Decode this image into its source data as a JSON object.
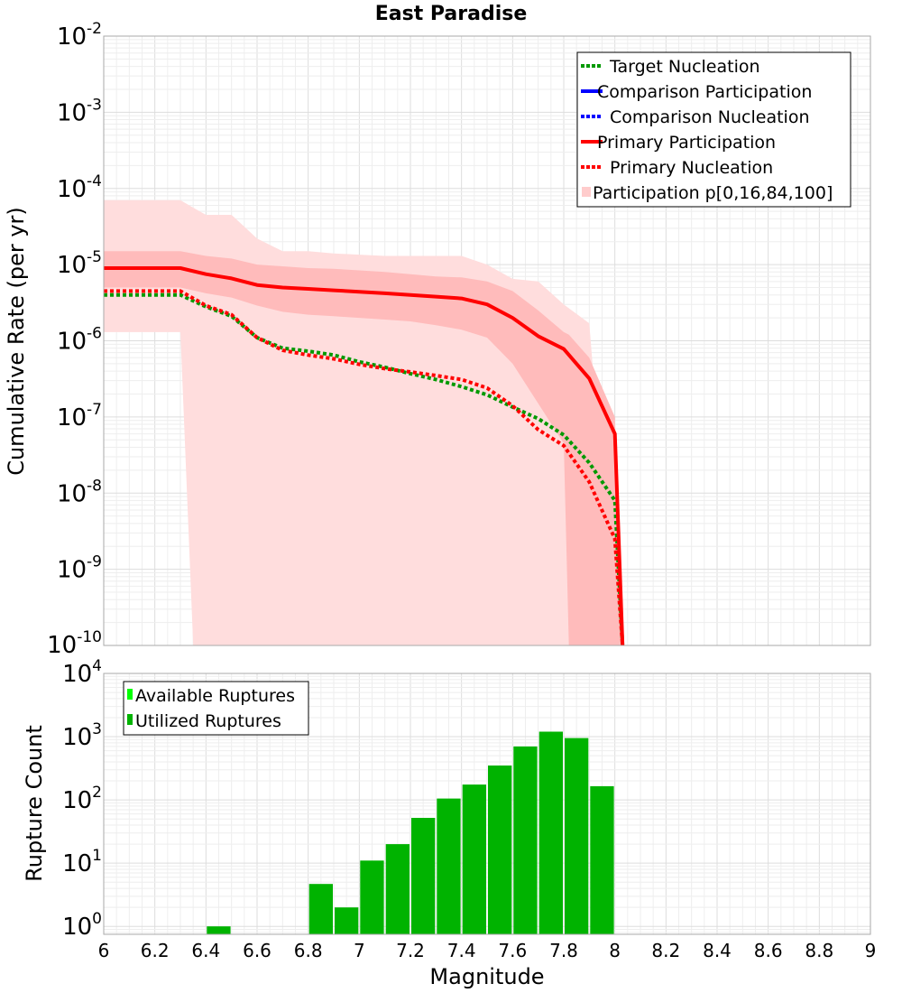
{
  "chart_data": [
    {
      "type": "line",
      "title": "East Paradise",
      "xlabel": "",
      "ylabel": "Cumulative Rate (per yr)",
      "yscale": "log",
      "xlim": [
        6,
        9
      ],
      "ylim": [
        1e-10,
        0.01
      ],
      "ytick_labels": [
        {
          "base": "10",
          "exp": "-2"
        },
        {
          "base": "10",
          "exp": "-3"
        },
        {
          "base": "10",
          "exp": "-4"
        },
        {
          "base": "10",
          "exp": "-5"
        },
        {
          "base": "10",
          "exp": "-6"
        },
        {
          "base": "10",
          "exp": "-7"
        },
        {
          "base": "10",
          "exp": "-8"
        },
        {
          "base": "10",
          "exp": "-9"
        },
        {
          "base": "10",
          "exp": "-10"
        }
      ],
      "legend": {
        "position": "top-right",
        "entries": [
          {
            "label": "Target Nucleation",
            "color": "#009900",
            "style": "dotted"
          },
          {
            "label": "Comparison Participation",
            "color": "#0000ff",
            "style": "solid"
          },
          {
            "label": "Comparison Nucleation",
            "color": "#0000ff",
            "style": "dotted"
          },
          {
            "label": "Primary Participation",
            "color": "#ff0000",
            "style": "solid"
          },
          {
            "label": "Primary Nucleation",
            "color": "#ff0000",
            "style": "dotted"
          },
          {
            "label": "Participation p[0,16,84,100]",
            "color": "#ffcccc",
            "style": "band"
          }
        ]
      },
      "series": [
        {
          "name": "Primary Participation",
          "color": "#ff0000",
          "style": "solid",
          "x": [
            6.0,
            6.3,
            6.4,
            6.5,
            6.6,
            6.7,
            6.8,
            6.9,
            7.0,
            7.1,
            7.2,
            7.3,
            7.4,
            7.5,
            7.6,
            7.7,
            7.8,
            7.9,
            8.0,
            8.03
          ],
          "y": [
            9e-06,
            9e-06,
            7.5e-06,
            6.6e-06,
            5.4e-06,
            5e-06,
            4.8e-06,
            4.6e-06,
            4.4e-06,
            4.2e-06,
            4e-06,
            3.8e-06,
            3.6e-06,
            3e-06,
            2e-06,
            1.15e-06,
            7.8e-07,
            3.2e-07,
            6e-08,
            1e-10
          ]
        },
        {
          "name": "Primary Nucleation",
          "color": "#ff0000",
          "style": "dotted",
          "x": [
            6.0,
            6.3,
            6.4,
            6.5,
            6.6,
            6.7,
            6.8,
            6.9,
            7.0,
            7.1,
            7.2,
            7.3,
            7.4,
            7.5,
            7.6,
            7.7,
            7.8,
            7.9,
            8.0,
            8.03
          ],
          "y": [
            4.5e-06,
            4.5e-06,
            2.9e-06,
            2.2e-06,
            1.1e-06,
            7.5e-07,
            6.5e-07,
            5.8e-07,
            4.9e-07,
            4.3e-07,
            3.9e-07,
            3.5e-07,
            3.1e-07,
            2.4e-07,
            1.4e-07,
            6.8e-08,
            4.2e-08,
            1.4e-08,
            2.5e-09,
            1e-10
          ]
        },
        {
          "name": "Target Nucleation",
          "color": "#009900",
          "style": "dotted",
          "x": [
            6.0,
            6.3,
            6.4,
            6.5,
            6.6,
            6.7,
            6.8,
            6.9,
            7.0,
            7.1,
            7.2,
            7.3,
            7.4,
            7.5,
            7.6,
            7.7,
            7.8,
            7.9,
            8.0,
            8.03
          ],
          "y": [
            4e-06,
            4e-06,
            2.8e-06,
            2.1e-06,
            1.1e-06,
            8e-07,
            7.3e-07,
            6.5e-07,
            5.3e-07,
            4.5e-07,
            3.7e-07,
            3.1e-07,
            2.5e-07,
            1.95e-07,
            1.35e-07,
            9.5e-08,
            5.8e-08,
            2.5e-08,
            8e-09,
            1e-10
          ]
        }
      ],
      "bands": [
        {
          "name": "Participation p[0,100]",
          "color": "#ffdddd",
          "x": [
            6.0,
            6.3,
            6.35,
            6.4,
            6.5,
            6.6,
            6.7,
            6.8,
            6.9,
            7.0,
            7.1,
            7.2,
            7.3,
            7.4,
            7.5,
            7.6,
            7.7,
            7.8,
            7.9,
            8.0,
            8.03
          ],
          "lower": [
            1.3e-06,
            1.3e-06,
            1e-10,
            1e-10,
            1e-10,
            1e-10,
            1e-10,
            1e-10,
            1e-10,
            1e-10,
            1e-10,
            1e-10,
            1e-10,
            1e-10,
            1e-10,
            1e-10,
            1e-10,
            1e-10,
            1e-10,
            1e-10,
            1e-10
          ],
          "upper": [
            7e-05,
            7e-05,
            5.6e-05,
            4.5e-05,
            4.5e-05,
            2.2e-05,
            1.5e-05,
            1.5e-05,
            1.4e-05,
            1.35e-05,
            1.3e-05,
            1.3e-05,
            1.3e-05,
            1.3e-05,
            1e-05,
            6.5e-06,
            6e-06,
            3e-06,
            1.7e-06,
            1e-10,
            1e-10
          ]
        },
        {
          "name": "Participation p[16,84]",
          "color": "#ffbbbb",
          "x": [
            6.0,
            6.3,
            6.4,
            6.5,
            6.6,
            6.7,
            6.8,
            6.9,
            7.0,
            7.1,
            7.2,
            7.3,
            7.4,
            7.5,
            7.6,
            7.7,
            7.8,
            7.82,
            7.9,
            8.0,
            8.03
          ],
          "lower": [
            5e-06,
            5e-06,
            4.2e-06,
            3.7e-06,
            2.9e-06,
            2.4e-06,
            2.2e-06,
            2.1e-06,
            2e-06,
            1.9e-06,
            1.8e-06,
            1.6e-06,
            1.4e-06,
            1.1e-06,
            5e-07,
            1.5e-07,
            4.5e-08,
            1e-10,
            1e-10,
            1e-10,
            1e-10
          ],
          "upper": [
            1.5e-05,
            1.5e-05,
            1.3e-05,
            1.2e-05,
            1e-05,
            9.5e-06,
            9e-06,
            8.8e-06,
            8.4e-06,
            8e-06,
            7.5e-06,
            7e-06,
            6.8e-06,
            6e-06,
            4.5e-06,
            2.5e-06,
            1.3e-06,
            1.2e-06,
            6e-07,
            1e-07,
            1e-10
          ]
        }
      ]
    },
    {
      "type": "bar",
      "xlabel": "Magnitude",
      "ylabel": "Rupture Count",
      "yscale": "log",
      "xlim": [
        6,
        9
      ],
      "ylim": [
        0.75,
        10000
      ],
      "xticks": [
        "6",
        "6.2",
        "6.4",
        "6.6",
        "6.8",
        "7",
        "7.2",
        "7.4",
        "7.6",
        "7.8",
        "8",
        "8.2",
        "8.4",
        "8.6",
        "8.8",
        "9"
      ],
      "ytick_labels": [
        {
          "base": "10",
          "exp": "4"
        },
        {
          "base": "10",
          "exp": "3"
        },
        {
          "base": "10",
          "exp": "2"
        },
        {
          "base": "10",
          "exp": "1"
        },
        {
          "base": "10",
          "exp": "0"
        }
      ],
      "legend": {
        "position": "top-left",
        "entries": [
          {
            "label": "Available Ruptures",
            "color": "#00ff00"
          },
          {
            "label": "Utilized Ruptures",
            "color": "#00b300"
          }
        ]
      },
      "bin_width": 0.1,
      "bars": [
        {
          "x": 6.45,
          "value": 1
        },
        {
          "x": 6.85,
          "value": 4.7
        },
        {
          "x": 6.95,
          "value": 2
        },
        {
          "x": 7.05,
          "value": 11
        },
        {
          "x": 7.15,
          "value": 20
        },
        {
          "x": 7.25,
          "value": 52
        },
        {
          "x": 7.35,
          "value": 105
        },
        {
          "x": 7.45,
          "value": 175
        },
        {
          "x": 7.55,
          "value": 350
        },
        {
          "x": 7.65,
          "value": 700
        },
        {
          "x": 7.75,
          "value": 1200
        },
        {
          "x": 7.85,
          "value": 950
        },
        {
          "x": 7.95,
          "value": 165
        }
      ]
    }
  ]
}
